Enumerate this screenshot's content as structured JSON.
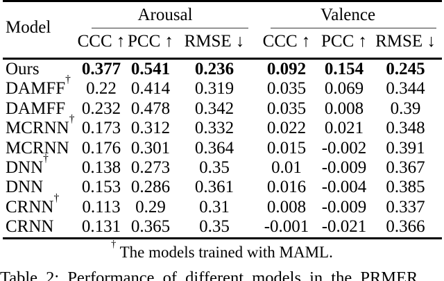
{
  "table": {
    "model_header": "Model",
    "group_headers": {
      "arousal": "Arousal",
      "valence": "Valence"
    },
    "metric_headers": [
      "CCC ↑",
      "PCC ↑",
      "RMSE ↓",
      "CCC ↑",
      "PCC ↑",
      "RMSE ↓"
    ],
    "rows": [
      {
        "model": "Ours",
        "sup": "",
        "values": [
          "0.377",
          "0.541",
          "0.236",
          "0.092",
          "0.154",
          "0.245"
        ]
      },
      {
        "model": "DAMFF",
        "sup": "†",
        "values": [
          "0.22",
          "0.414",
          "0.319",
          "0.035",
          "0.069",
          "0.344"
        ]
      },
      {
        "model": "DAMFF",
        "sup": "",
        "values": [
          "0.232",
          "0.478",
          "0.342",
          "0.035",
          "0.008",
          "0.39"
        ]
      },
      {
        "model": "MCRNN",
        "sup": "†",
        "values": [
          "0.173",
          "0.312",
          "0.332",
          "0.022",
          "0.021",
          "0.348"
        ]
      },
      {
        "model": "MCRNN",
        "sup": "",
        "values": [
          "0.176",
          "0.301",
          "0.364",
          "0.015",
          "-0.002",
          "0.391"
        ]
      },
      {
        "model": "DNN",
        "sup": "†",
        "values": [
          "0.138",
          "0.273",
          "0.35",
          "0.01",
          "-0.009",
          "0.367"
        ]
      },
      {
        "model": "DNN",
        "sup": "",
        "values": [
          "0.153",
          "0.286",
          "0.361",
          "0.016",
          "-0.004",
          "0.385"
        ]
      },
      {
        "model": "CRNN",
        "sup": "†",
        "values": [
          "0.113",
          "0.29",
          "0.31",
          "0.008",
          "-0.009",
          "0.337"
        ]
      },
      {
        "model": "CRNN",
        "sup": "",
        "values": [
          "0.131",
          "0.365",
          "0.35",
          "-0.001",
          "-0.021",
          "0.366"
        ]
      }
    ],
    "footnote": {
      "symbol": "†",
      "text": "The models trained with MAML."
    }
  },
  "caption": {
    "text": "Table 2: Performance of different models in the PRMER"
  },
  "colors": {
    "text": "#000000",
    "background": "#ffffff",
    "rule": "#000000"
  }
}
